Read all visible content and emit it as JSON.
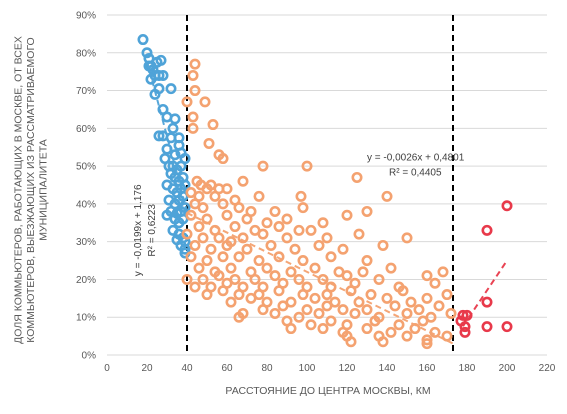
{
  "chart_data": {
    "type": "scatter",
    "xlabel": "РАССТОЯНИЕ ДО ЦЕНТРА МОСКВЫ, КМ",
    "ylabel_lines": [
      "ДОЛЯ КОММЬЮТЕРОВ, РАБОТАЮЩИХ В МОСКВЕ, ОТ ВСЕХ",
      "КОММЬЮТЕРОВ, ВЫЕЗЖАЮЩИХ ИЗ РАССМАТРИВАЕМОГО",
      "МУНИЦИПАЛИТЕТА"
    ],
    "xlim": [
      0,
      220
    ],
    "ylim": [
      0,
      0.9
    ],
    "x_ticks": [
      0,
      20,
      40,
      60,
      80,
      100,
      120,
      140,
      160,
      180,
      200,
      220
    ],
    "x_tick_labels": [
      "0",
      "20",
      "40",
      "60",
      "80",
      "100",
      "120",
      "140",
      "160",
      "180",
      "200",
      "220"
    ],
    "y_ticks": [
      0,
      0.1,
      0.2,
      0.3,
      0.4,
      0.5,
      0.6,
      0.7,
      0.8,
      0.9
    ],
    "y_tick_labels": [
      "0%",
      "10%",
      "20%",
      "30%",
      "40%",
      "50%",
      "60%",
      "70%",
      "80%",
      "90%"
    ],
    "grid": "horizontal",
    "vlines": [
      40,
      173
    ],
    "annotations": [
      {
        "lines": [
          "y = -0,0026x + 0,4801",
          "R² = 0,4405"
        ],
        "x": 130,
        "y": 0.515
      },
      {
        "lines": [
          "y = -0,0199x + 1,176",
          "R² = 0,6223"
        ],
        "x": 10,
        "y": 0.33,
        "rotated": true
      }
    ],
    "series": [
      {
        "color": "#4fa3d8",
        "trend": {
          "slope": -0.0199,
          "intercept": 1.176,
          "x": [
            20,
            40
          ]
        },
        "points": [
          [
            18,
            0.835
          ],
          [
            20,
            0.8
          ],
          [
            21,
            0.785
          ],
          [
            22,
            0.765
          ],
          [
            21,
            0.765
          ],
          [
            23,
            0.755
          ],
          [
            24,
            0.74
          ],
          [
            22,
            0.73
          ],
          [
            25,
            0.775
          ],
          [
            26,
            0.74
          ],
          [
            27,
            0.78
          ],
          [
            28,
            0.74
          ],
          [
            26,
            0.705
          ],
          [
            32,
            0.705
          ],
          [
            24,
            0.69
          ],
          [
            28,
            0.65
          ],
          [
            30,
            0.63
          ],
          [
            34,
            0.625
          ],
          [
            33,
            0.6
          ],
          [
            28,
            0.58
          ],
          [
            32,
            0.575
          ],
          [
            26,
            0.58
          ],
          [
            36,
            0.575
          ],
          [
            30,
            0.545
          ],
          [
            34,
            0.53
          ],
          [
            36,
            0.555
          ],
          [
            37,
            0.535
          ],
          [
            29,
            0.52
          ],
          [
            31,
            0.5
          ],
          [
            33,
            0.5
          ],
          [
            35,
            0.49
          ],
          [
            37,
            0.5
          ],
          [
            39,
            0.52
          ],
          [
            32,
            0.48
          ],
          [
            34,
            0.47
          ],
          [
            36,
            0.46
          ],
          [
            38,
            0.47
          ],
          [
            30,
            0.45
          ],
          [
            33,
            0.44
          ],
          [
            35,
            0.43
          ],
          [
            37,
            0.44
          ],
          [
            39,
            0.45
          ],
          [
            31,
            0.41
          ],
          [
            34,
            0.4
          ],
          [
            36,
            0.41
          ],
          [
            38,
            0.42
          ],
          [
            32,
            0.38
          ],
          [
            35,
            0.375
          ],
          [
            37,
            0.38
          ],
          [
            39,
            0.39
          ],
          [
            30,
            0.37
          ],
          [
            34,
            0.36
          ],
          [
            36,
            0.35
          ],
          [
            38,
            0.36
          ],
          [
            33,
            0.33
          ],
          [
            36,
            0.32
          ],
          [
            38,
            0.31
          ],
          [
            39,
            0.3
          ],
          [
            37,
            0.29
          ],
          [
            39,
            0.28
          ],
          [
            39,
            0.27
          ],
          [
            35,
            0.305
          ]
        ]
      },
      {
        "color": "#f4a270",
        "trend": {
          "slope": -0.0026,
          "intercept": 0.4801,
          "x": [
            40,
            173
          ]
        },
        "points": [
          [
            44,
            0.77
          ],
          [
            43,
            0.74
          ],
          [
            44,
            0.7
          ],
          [
            40,
            0.67
          ],
          [
            49,
            0.67
          ],
          [
            43,
            0.63
          ],
          [
            53,
            0.61
          ],
          [
            43,
            0.6
          ],
          [
            51,
            0.56
          ],
          [
            56,
            0.53
          ],
          [
            58,
            0.52
          ],
          [
            78,
            0.5
          ],
          [
            100,
            0.5
          ],
          [
            47,
            0.45
          ],
          [
            45,
            0.46
          ],
          [
            50,
            0.44
          ],
          [
            52,
            0.45
          ],
          [
            56,
            0.44
          ],
          [
            60,
            0.44
          ],
          [
            68,
            0.46
          ],
          [
            125,
            0.47
          ],
          [
            42,
            0.43
          ],
          [
            46,
            0.42
          ],
          [
            54,
            0.42
          ],
          [
            64,
            0.41
          ],
          [
            76,
            0.42
          ],
          [
            97,
            0.42
          ],
          [
            140,
            0.42
          ],
          [
            44,
            0.4
          ],
          [
            48,
            0.39
          ],
          [
            58,
            0.4
          ],
          [
            66,
            0.39
          ],
          [
            72,
            0.38
          ],
          [
            84,
            0.38
          ],
          [
            98,
            0.39
          ],
          [
            42,
            0.37
          ],
          [
            50,
            0.36
          ],
          [
            60,
            0.37
          ],
          [
            70,
            0.36
          ],
          [
            80,
            0.35
          ],
          [
            90,
            0.36
          ],
          [
            108,
            0.35
          ],
          [
            120,
            0.37
          ],
          [
            130,
            0.38
          ],
          [
            46,
            0.34
          ],
          [
            54,
            0.33
          ],
          [
            64,
            0.34
          ],
          [
            74,
            0.33
          ],
          [
            86,
            0.34
          ],
          [
            96,
            0.33
          ],
          [
            102,
            0.33
          ],
          [
            40,
            0.32
          ],
          [
            48,
            0.31
          ],
          [
            56,
            0.31
          ],
          [
            62,
            0.3
          ],
          [
            68,
            0.31
          ],
          [
            78,
            0.32
          ],
          [
            90,
            0.31
          ],
          [
            110,
            0.31
          ],
          [
            126,
            0.32
          ],
          [
            150,
            0.31
          ],
          [
            44,
            0.29
          ],
          [
            52,
            0.28
          ],
          [
            60,
            0.29
          ],
          [
            70,
            0.28
          ],
          [
            82,
            0.29
          ],
          [
            94,
            0.28
          ],
          [
            106,
            0.29
          ],
          [
            118,
            0.28
          ],
          [
            138,
            0.29
          ],
          [
            42,
            0.26
          ],
          [
            50,
            0.25
          ],
          [
            58,
            0.26
          ],
          [
            66,
            0.26
          ],
          [
            76,
            0.25
          ],
          [
            86,
            0.26
          ],
          [
            98,
            0.25
          ],
          [
            112,
            0.26
          ],
          [
            130,
            0.25
          ],
          [
            46,
            0.23
          ],
          [
            54,
            0.22
          ],
          [
            62,
            0.23
          ],
          [
            72,
            0.22
          ],
          [
            80,
            0.23
          ],
          [
            92,
            0.22
          ],
          [
            104,
            0.23
          ],
          [
            116,
            0.22
          ],
          [
            128,
            0.22
          ],
          [
            142,
            0.23
          ],
          [
            168,
            0.22
          ],
          [
            40,
            0.2
          ],
          [
            48,
            0.2
          ],
          [
            56,
            0.21
          ],
          [
            64,
            0.2
          ],
          [
            74,
            0.2
          ],
          [
            84,
            0.21
          ],
          [
            96,
            0.2
          ],
          [
            108,
            0.2
          ],
          [
            120,
            0.21
          ],
          [
            136,
            0.2
          ],
          [
            160,
            0.21
          ],
          [
            44,
            0.18
          ],
          [
            52,
            0.18
          ],
          [
            60,
            0.19
          ],
          [
            68,
            0.18
          ],
          [
            78,
            0.18
          ],
          [
            88,
            0.19
          ],
          [
            100,
            0.18
          ],
          [
            112,
            0.18
          ],
          [
            124,
            0.19
          ],
          [
            146,
            0.18
          ],
          [
            164,
            0.19
          ],
          [
            50,
            0.16
          ],
          [
            58,
            0.17
          ],
          [
            66,
            0.16
          ],
          [
            76,
            0.16
          ],
          [
            86,
            0.17
          ],
          [
            98,
            0.16
          ],
          [
            110,
            0.16
          ],
          [
            122,
            0.17
          ],
          [
            132,
            0.16
          ],
          [
            148,
            0.17
          ],
          [
            170,
            0.16
          ],
          [
            62,
            0.14
          ],
          [
            72,
            0.15
          ],
          [
            80,
            0.14
          ],
          [
            92,
            0.14
          ],
          [
            104,
            0.15
          ],
          [
            114,
            0.14
          ],
          [
            126,
            0.14
          ],
          [
            140,
            0.15
          ],
          [
            152,
            0.14
          ],
          [
            160,
            0.15
          ],
          [
            78,
            0.12
          ],
          [
            88,
            0.13
          ],
          [
            100,
            0.12
          ],
          [
            110,
            0.13
          ],
          [
            118,
            0.12
          ],
          [
            130,
            0.12
          ],
          [
            144,
            0.13
          ],
          [
            156,
            0.12
          ],
          [
            166,
            0.13
          ],
          [
            68,
            0.11
          ],
          [
            84,
            0.11
          ],
          [
            96,
            0.1
          ],
          [
            106,
            0.11
          ],
          [
            124,
            0.11
          ],
          [
            136,
            0.1
          ],
          [
            150,
            0.11
          ],
          [
            162,
            0.1
          ],
          [
            172,
            0.11
          ],
          [
            66,
            0.1
          ],
          [
            90,
            0.09
          ],
          [
            102,
            0.08
          ],
          [
            112,
            0.09
          ],
          [
            120,
            0.08
          ],
          [
            134,
            0.09
          ],
          [
            146,
            0.08
          ],
          [
            158,
            0.09
          ],
          [
            92,
            0.07
          ],
          [
            108,
            0.07
          ],
          [
            118,
            0.06
          ],
          [
            130,
            0.07
          ],
          [
            142,
            0.06
          ],
          [
            154,
            0.07
          ],
          [
            164,
            0.06
          ],
          [
            120,
            0.05
          ],
          [
            136,
            0.05
          ],
          [
            150,
            0.05
          ],
          [
            160,
            0.04
          ],
          [
            170,
            0.05
          ],
          [
            122,
            0.035
          ],
          [
            138,
            0.035
          ],
          [
            160,
            0.03
          ]
        ]
      },
      {
        "color": "#e8394a",
        "trend": {
          "slope": 0.0079,
          "intercept": -1.33,
          "x": [
            178,
            200
          ]
        },
        "points": [
          [
            200,
            0.395
          ],
          [
            190,
            0.33
          ],
          [
            190,
            0.14
          ],
          [
            178,
            0.105
          ],
          [
            180,
            0.105
          ],
          [
            177,
            0.09
          ],
          [
            179,
            0.075
          ],
          [
            190,
            0.075
          ],
          [
            200,
            0.075
          ],
          [
            179,
            0.06
          ]
        ]
      }
    ]
  }
}
